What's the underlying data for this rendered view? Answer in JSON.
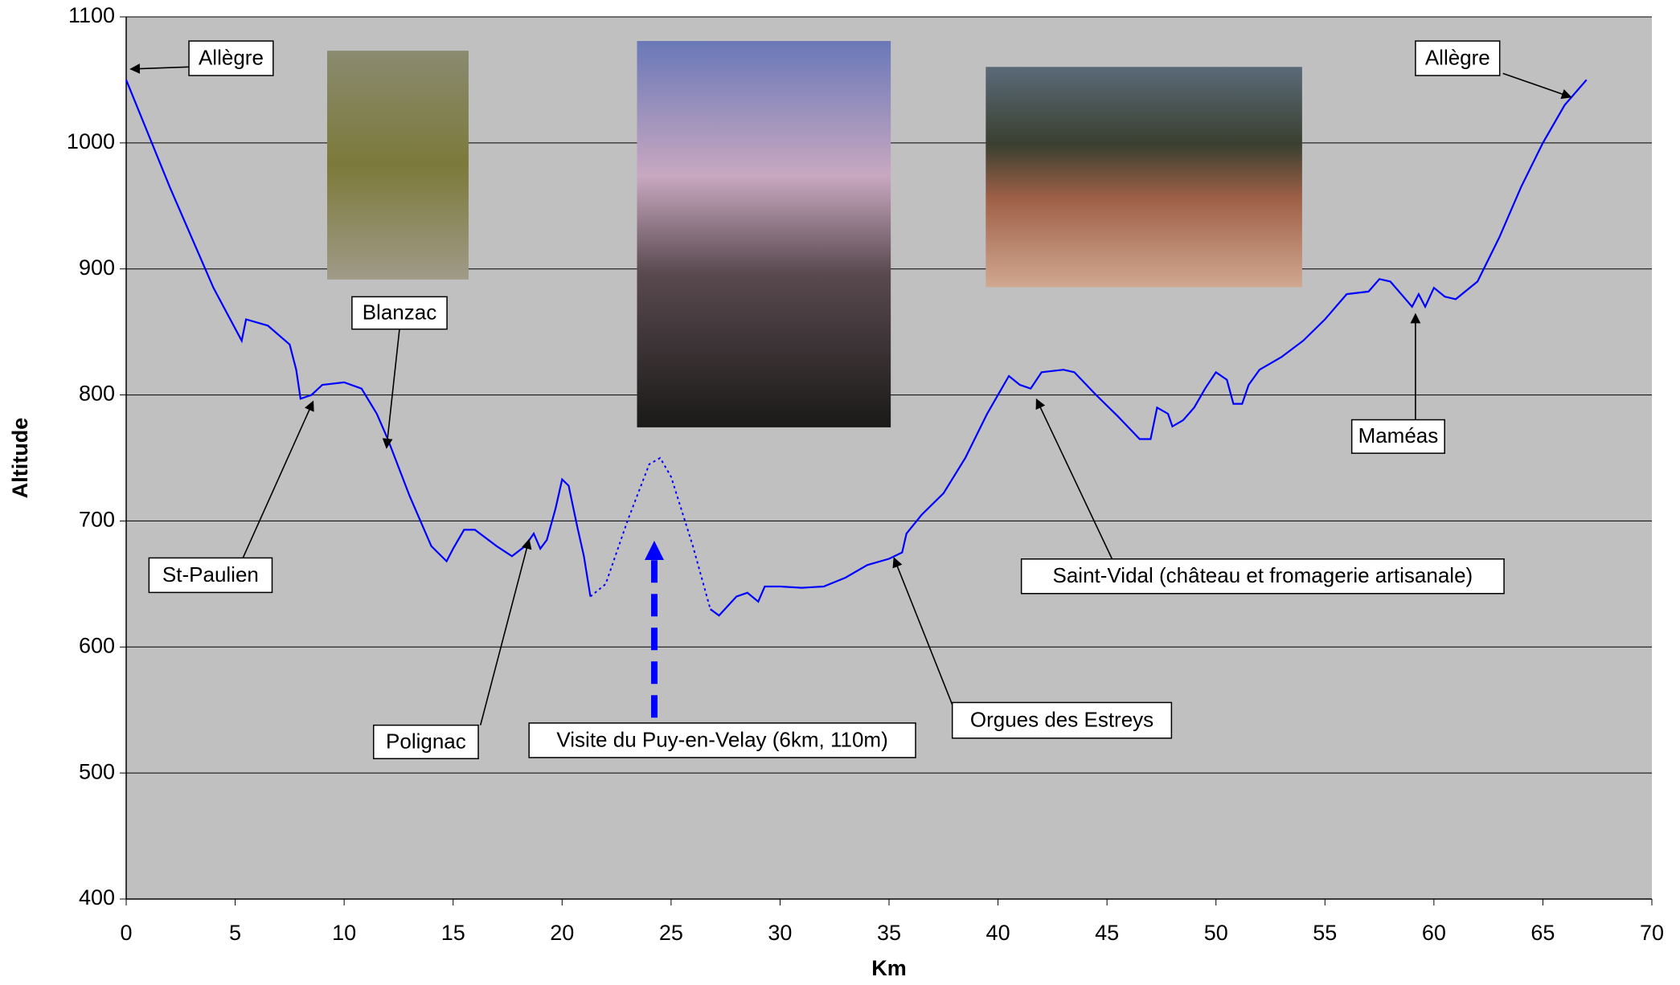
{
  "chart_data": {
    "type": "line",
    "x_label": "Km",
    "y_label": "Altitude",
    "x": [
      0,
      2,
      4,
      5.3,
      5.5,
      6.5,
      7.5,
      7.8,
      8,
      8.5,
      9,
      10,
      10.8,
      11.5,
      12,
      13,
      14,
      14.7,
      15,
      15.5,
      16,
      17,
      17.7,
      18.3,
      18.7,
      19,
      19.3,
      19.7,
      20,
      20.3,
      20.7,
      21,
      21.3,
      22,
      23,
      24,
      24.5,
      25,
      26,
      26.8,
      27.2,
      28,
      28.5,
      29,
      29.3,
      30,
      31,
      32,
      33,
      34,
      35,
      35.6,
      35.8,
      36.5,
      37.5,
      38.5,
      39.5,
      40.5,
      41,
      41.5,
      42,
      43,
      43.5,
      44.5,
      45.5,
      46.5,
      47,
      47.3,
      47.8,
      48,
      48.5,
      49,
      49.5,
      50,
      50.5,
      50.8,
      51.2,
      51.5,
      52,
      53,
      54,
      55,
      56,
      57,
      57.5,
      58,
      58.6,
      59,
      59.3,
      59.6,
      60,
      60.5,
      61,
      62,
      63,
      64,
      65,
      66,
      67
    ],
    "series": [
      {
        "color": "#0000ff",
        "line_style": "solid",
        "values": [
          1050,
          965,
          885,
          843,
          860,
          855,
          840,
          820,
          797,
          800,
          808,
          810,
          805,
          785,
          765,
          720,
          680,
          668,
          678,
          693,
          693,
          680,
          672,
          680,
          690,
          678,
          685,
          710,
          733,
          728,
          695,
          672,
          640,
          null,
          null,
          null,
          null,
          null,
          null,
          630,
          625,
          640,
          643,
          636,
          648,
          648,
          647,
          648,
          655,
          665,
          670,
          675,
          690,
          705,
          722,
          750,
          785,
          815,
          808,
          805,
          818,
          820,
          818,
          800,
          783,
          765,
          765,
          790,
          785,
          775,
          780,
          790,
          805,
          818,
          812,
          793,
          793,
          808,
          820,
          830,
          843,
          860,
          880,
          882,
          892,
          890,
          878,
          870,
          880,
          870,
          885,
          878,
          876,
          890,
          925,
          965,
          1000,
          1030,
          1050
        ]
      },
      {
        "color": "#0000ff",
        "line_style": "dotted",
        "values": [
          null,
          null,
          null,
          null,
          null,
          null,
          null,
          null,
          null,
          null,
          null,
          null,
          null,
          null,
          null,
          null,
          null,
          null,
          null,
          null,
          null,
          null,
          null,
          null,
          null,
          null,
          null,
          null,
          null,
          null,
          null,
          null,
          640,
          650,
          700,
          745,
          750,
          735,
          680,
          630,
          null,
          null,
          null,
          null,
          null,
          null,
          null,
          null,
          null,
          null,
          null,
          null,
          null,
          null,
          null,
          null,
          null,
          null,
          null,
          null,
          null,
          null,
          null,
          null,
          null,
          null,
          null,
          null,
          null,
          null,
          null,
          null,
          null,
          null,
          null,
          null,
          null,
          null,
          null,
          null,
          null,
          null,
          null,
          null,
          null,
          null,
          null,
          null,
          null,
          null,
          null,
          null,
          null,
          null,
          null,
          null,
          null,
          null,
          null
        ]
      }
    ],
    "xlim": [
      0,
      70
    ],
    "xticks": [
      0,
      5,
      10,
      15,
      20,
      25,
      30,
      35,
      40,
      45,
      50,
      55,
      60,
      65,
      70
    ],
    "ylim": [
      400,
      1100
    ],
    "yticks": [
      400,
      500,
      600,
      700,
      800,
      900,
      1000,
      1100
    ],
    "grid": true,
    "plot_background": "#c0c0c0",
    "annotations": [
      "Allègre",
      "Blanzac",
      "St-Paulien",
      "Polignac",
      "Visite du Puy-en-Velay (6km, 110m)",
      "Orgues des Estreys",
      "Saint-Vidal (château et fromagerie artisanale)",
      "Maméas",
      "Allègre"
    ]
  }
}
